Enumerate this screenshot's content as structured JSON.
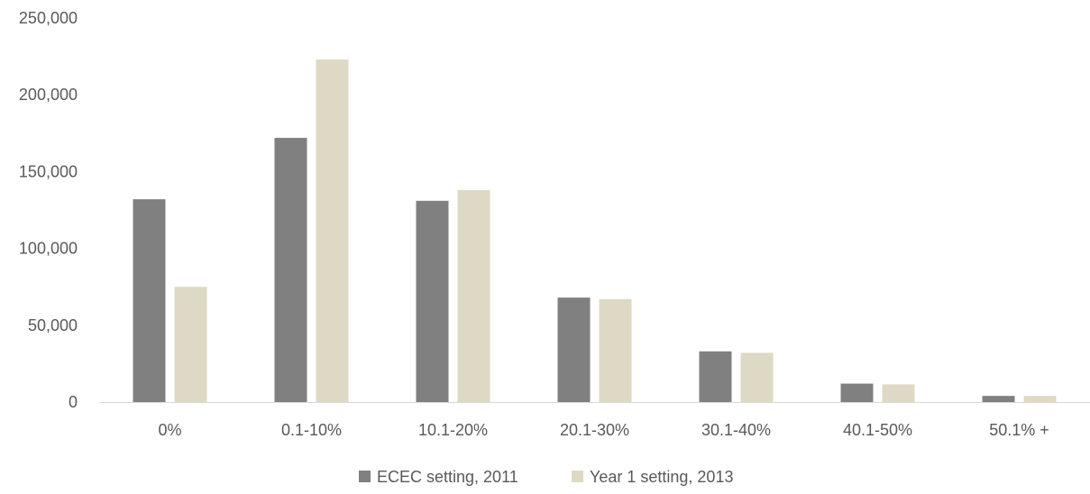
{
  "chart_data": {
    "type": "bar",
    "title": "",
    "xlabel": "",
    "ylabel": "",
    "categories": [
      "0%",
      "0.1-10%",
      "10.1-20%",
      "20.1-30%",
      "30.1-40%",
      "40.1-50%",
      "50.1% +"
    ],
    "series": [
      {
        "name": "ECEC setting, 2011",
        "color": "#808080",
        "values": [
          132000,
          172000,
          131000,
          68000,
          33000,
          12000,
          4000
        ]
      },
      {
        "name": "Year 1 setting, 2013",
        "color": "#DDD9C4",
        "values": [
          75000,
          223000,
          138000,
          67000,
          32000,
          11500,
          4000
        ]
      }
    ],
    "ylim": [
      0,
      250000
    ],
    "yticks": [
      0,
      50000,
      100000,
      150000,
      200000,
      250000
    ],
    "ytick_labels": [
      "0",
      "50,000",
      "100,000",
      "150,000",
      "200,000",
      "250,000"
    ],
    "grid": false,
    "legend_position": "bottom",
    "axis_color": "#D9D9D9"
  }
}
